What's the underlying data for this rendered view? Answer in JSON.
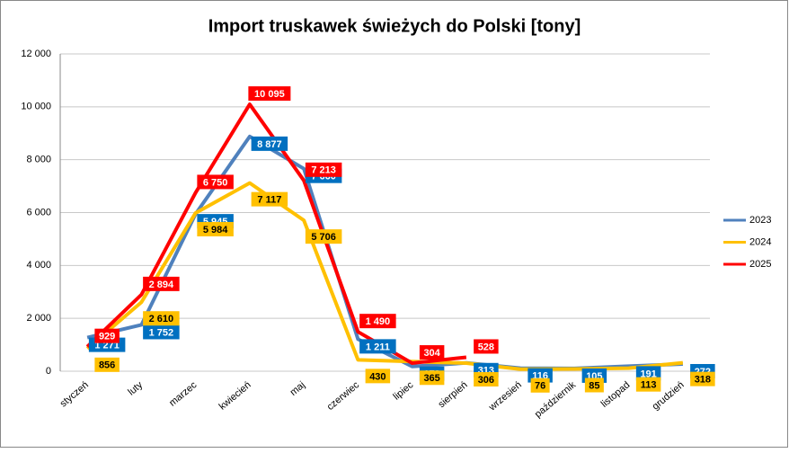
{
  "chart_data": {
    "type": "line",
    "title": "Import truskawek świeżych do Polski [tony]",
    "categories": [
      "styczeń",
      "luty",
      "marzec",
      "kwiecień",
      "maj",
      "czerwiec",
      "lipiec",
      "sierpień",
      "wrzesień",
      "październik",
      "listopad",
      "grudzień"
    ],
    "series": [
      {
        "name": "2023",
        "color": "#4f81bd",
        "label_color": "#0070c0",
        "label_text": "#ffffff",
        "values": [
          1271,
          1752,
          5945,
          8877,
          7660,
          1211,
          179,
          313,
          116,
          105,
          191,
          272
        ],
        "value_labels": [
          "1 271",
          "1 752",
          "5 945",
          "8 877",
          "7 660",
          "1 211",
          "179",
          "313",
          "116",
          "105",
          "191",
          "272"
        ]
      },
      {
        "name": "2024",
        "color": "#ffc000",
        "label_color": "#ffc000",
        "label_text": "#000000",
        "values": [
          856,
          2610,
          5984,
          7117,
          5706,
          430,
          365,
          306,
          76,
          85,
          113,
          318
        ],
        "value_labels": [
          "856",
          "2 610",
          "5 984",
          "7 117",
          "5 706",
          "430",
          "365",
          "306",
          "76",
          "85",
          "113",
          "318"
        ]
      },
      {
        "name": "2025",
        "color": "#ff0000",
        "label_color": "#ff0000",
        "label_text": "#ffffff",
        "values": [
          929,
          2894,
          6750,
          10095,
          7213,
          1490,
          304,
          528,
          null,
          null,
          null,
          null
        ],
        "value_labels": [
          "929",
          "2 894",
          "6 750",
          "10 095",
          "7 213",
          "1 490",
          "304",
          "528",
          null,
          null,
          null,
          null
        ]
      }
    ],
    "ylim": [
      0,
      12000
    ],
    "yticks": [
      0,
      {
        "value": 2000,
        "label": "2 000"
      },
      {
        "value": 4000,
        "label": "4 000"
      },
      {
        "value": 6000,
        "label": "6 000"
      },
      {
        "value": 8000,
        "label": "8 000"
      },
      {
        "value": 10000,
        "label": "10 000"
      },
      {
        "value": 12000,
        "label": "12 000"
      }
    ],
    "grid": true,
    "legend": "right"
  }
}
